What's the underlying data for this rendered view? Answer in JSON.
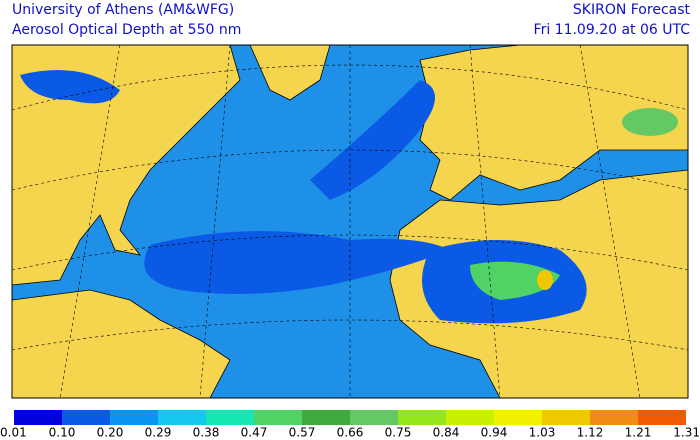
{
  "header": {
    "left_line1": "University of Athens (AM&WFG)",
    "left_line2": "Aerosol Optical Depth at 550 nm",
    "right_line1": "SKIRON Forecast",
    "right_line2": "Fri 11.09.20 at 06 UTC"
  },
  "legend": {
    "ticks": [
      {
        "value": 0.01,
        "label": "0.01"
      },
      {
        "value": 0.1,
        "label": "0.10"
      },
      {
        "value": 0.2,
        "label": "0.20"
      },
      0.29,
      0.38,
      0.47,
      0.57,
      0.66,
      0.75,
      0.84,
      0.94,
      1.03,
      1.12,
      1.21,
      1.31
    ],
    "colors": [
      "#0000dc",
      "#0a5ae6",
      "#0a96f0",
      "#14c8f0",
      "#14e6b4",
      "#50d264",
      "#3caa3c",
      "#64c864",
      "#96e61e",
      "#c8f000",
      "#f0f000",
      "#f0c800",
      "#f08c14",
      "#f05a00"
    ]
  }
}
